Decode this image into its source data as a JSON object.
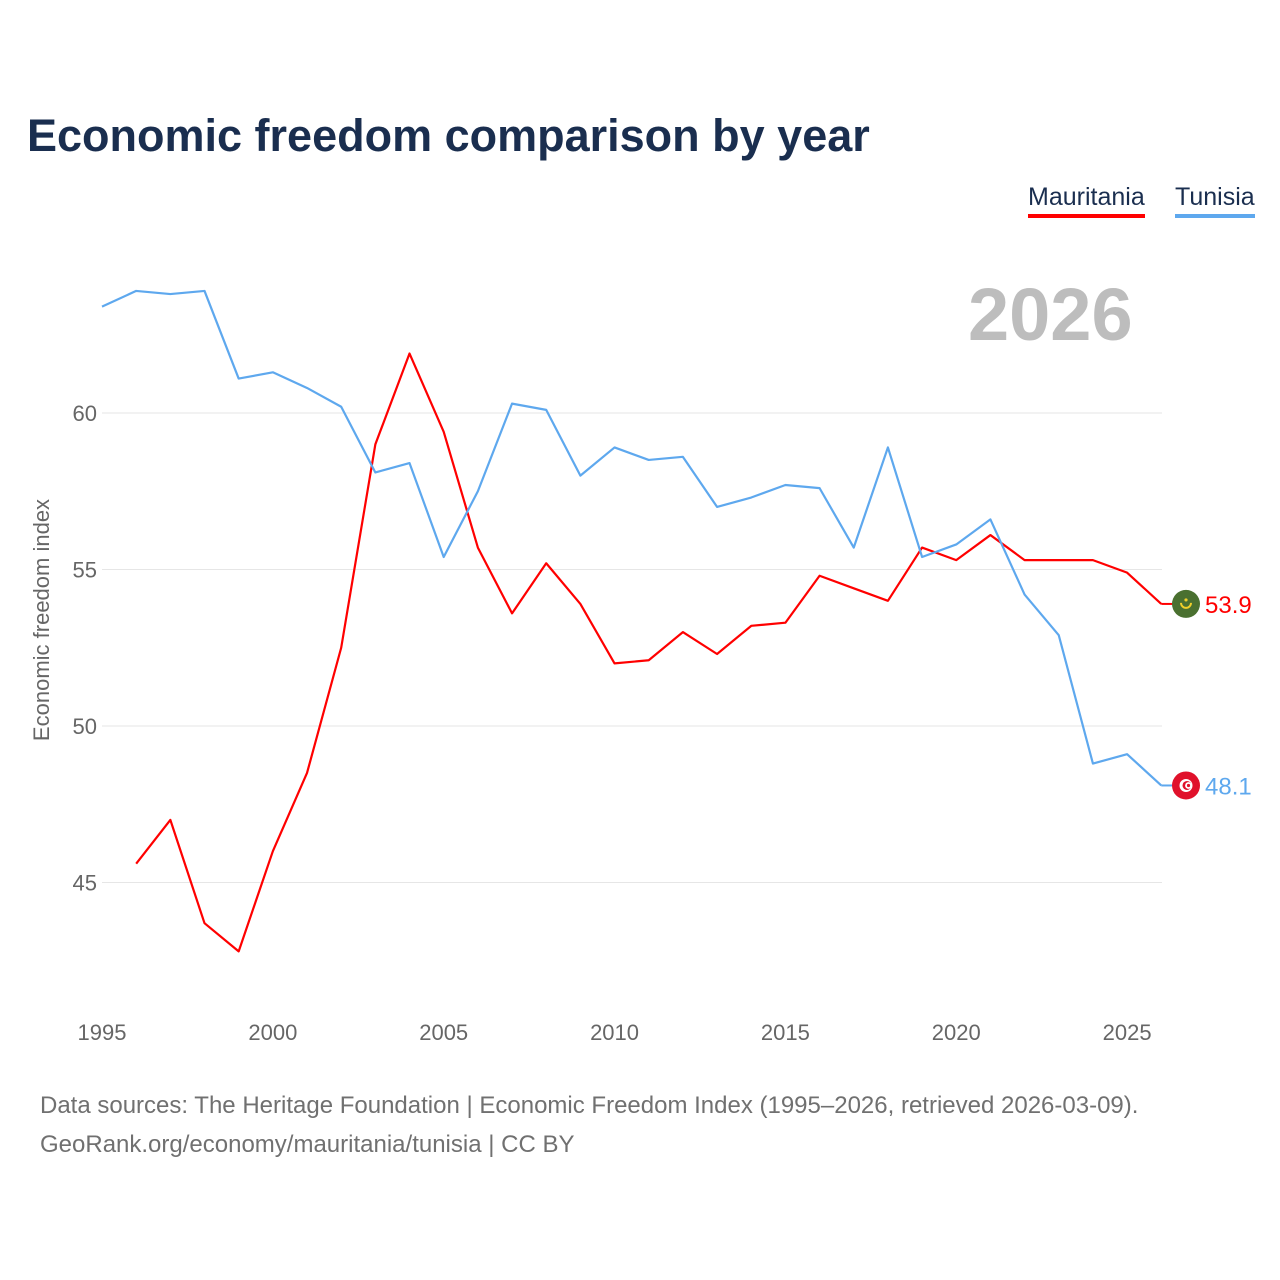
{
  "chart_data": {
    "type": "line",
    "title": "Economic freedom comparison by year",
    "ylabel": "Economic freedom index",
    "xlabel": "",
    "xlim": [
      1995,
      2026
    ],
    "ylim": [
      41.5,
      65
    ],
    "grid": true,
    "legend_position": "top-right",
    "current_year_label": "2026",
    "x_ticks": [
      "1995",
      "2000",
      "2005",
      "2010",
      "2015",
      "2020",
      "2025"
    ],
    "y_ticks": [
      "45",
      "50",
      "55",
      "60"
    ],
    "series": [
      {
        "name": "Mauritania",
        "color": "#ff0000",
        "flag": "mauritania-flag",
        "end_label": "53.9",
        "x": [
          1996,
          1997,
          1998,
          1999,
          2000,
          2001,
          2002,
          2003,
          2004,
          2005,
          2006,
          2007,
          2008,
          2009,
          2010,
          2011,
          2012,
          2013,
          2014,
          2015,
          2016,
          2017,
          2018,
          2019,
          2020,
          2021,
          2022,
          2023,
          2024,
          2025,
          2026
        ],
        "values": [
          45.6,
          47.0,
          43.7,
          42.8,
          46.0,
          48.5,
          52.5,
          59.0,
          61.9,
          59.4,
          55.7,
          53.6,
          55.2,
          53.9,
          52.0,
          52.1,
          53.0,
          52.3,
          53.2,
          53.3,
          54.8,
          54.4,
          54.0,
          55.7,
          55.3,
          56.1,
          55.3,
          55.3,
          55.3,
          54.9,
          53.9
        ]
      },
      {
        "name": "Tunisia",
        "color": "#5ea8ee",
        "flag": "tunisia-flag",
        "end_label": "48.1",
        "x": [
          1995,
          1996,
          1997,
          1998,
          1999,
          2000,
          2001,
          2002,
          2003,
          2004,
          2005,
          2006,
          2007,
          2008,
          2009,
          2010,
          2011,
          2012,
          2013,
          2014,
          2015,
          2016,
          2017,
          2018,
          2019,
          2020,
          2021,
          2022,
          2023,
          2024,
          2025,
          2026
        ],
        "values": [
          63.4,
          63.9,
          63.8,
          63.9,
          61.1,
          61.3,
          60.8,
          60.2,
          58.1,
          58.4,
          55.4,
          57.5,
          60.3,
          60.1,
          58.0,
          58.9,
          58.5,
          58.6,
          57.0,
          57.3,
          57.7,
          57.6,
          55.7,
          58.9,
          55.4,
          55.8,
          56.6,
          54.2,
          52.9,
          48.8,
          49.1,
          48.1
        ]
      }
    ]
  },
  "footer": {
    "line1": "Data sources: The Heritage Foundation | Economic Freedom Index (1995–2026, retrieved 2026-03-09).",
    "line2": "GeoRank.org/economy/mauritania/tunisia | CC BY"
  }
}
